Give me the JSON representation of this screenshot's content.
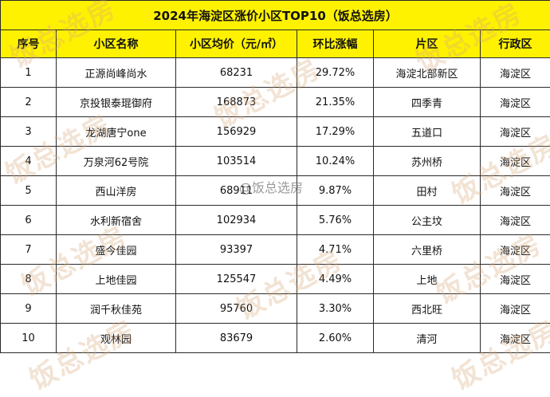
{
  "table": {
    "title": "2024年海淀区涨价小区TOP10（饭总选房）",
    "headers": [
      "序号",
      "小区名称",
      "小区均价（元/㎡）",
      "环比涨幅",
      "片区",
      "行政区"
    ],
    "rows": [
      [
        "1",
        "正源尚峰尚水",
        "68231",
        "29.72%",
        "海淀北部新区",
        "海淀区"
      ],
      [
        "2",
        "京投银泰琨御府",
        "168873",
        "21.35%",
        "四季青",
        "海淀区"
      ],
      [
        "3",
        "龙湖唐宁one",
        "156929",
        "17.29%",
        "五道口",
        "海淀区"
      ],
      [
        "4",
        "万泉河62号院",
        "103514",
        "10.24%",
        "苏州桥",
        "海淀区"
      ],
      [
        "5",
        "西山洋房",
        "68911",
        "9.87%",
        "田村",
        "海淀区"
      ],
      [
        "6",
        "水利新宿舍",
        "102934",
        "5.76%",
        "公主坟",
        "海淀区"
      ],
      [
        "7",
        "盛今佳园",
        "93397",
        "4.71%",
        "六里桥",
        "海淀区"
      ],
      [
        "8",
        "上地佳园",
        "125547",
        "4.49%",
        "上地",
        "海淀区"
      ],
      [
        "9",
        "润千秋佳苑",
        "95760",
        "3.30%",
        "西北旺",
        "海淀区"
      ],
      [
        "10",
        "观林园",
        "83679",
        "2.60%",
        "清河",
        "海淀区"
      ]
    ]
  },
  "watermark": {
    "text": "饭总选房",
    "weibo_text": "@饭总选房"
  },
  "colors": {
    "header_fill": "#fff200",
    "border": "#2a2a2a",
    "watermark": "#d6a878"
  }
}
